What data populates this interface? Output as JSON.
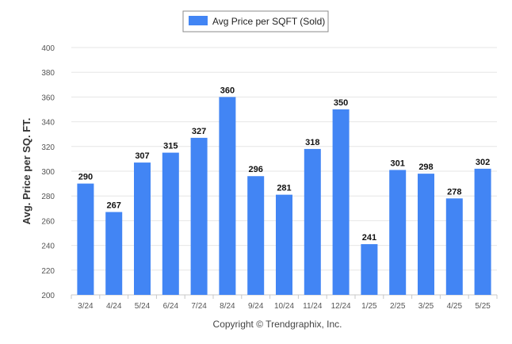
{
  "chart_data": {
    "type": "bar",
    "categories": [
      "3/24",
      "4/24",
      "5/24",
      "6/24",
      "7/24",
      "8/24",
      "9/24",
      "10/24",
      "11/24",
      "12/24",
      "1/25",
      "2/25",
      "3/25",
      "4/25",
      "5/25"
    ],
    "series": [
      {
        "name": "Avg Price per SQFT (Sold)",
        "values": [
          290,
          267,
          307,
          315,
          327,
          360,
          296,
          281,
          318,
          350,
          241,
          301,
          298,
          278,
          302
        ]
      }
    ],
    "title": "",
    "xlabel": "",
    "ylabel": "Avg. Price per SQ. FT.",
    "ylim": [
      200,
      400
    ],
    "yticks": [
      200,
      220,
      240,
      260,
      280,
      300,
      320,
      340,
      360,
      380,
      400
    ],
    "grid": true,
    "legend": "top-center",
    "data_labels": true,
    "colors": {
      "bar": "#4285F4",
      "grid": "#E6E6E6",
      "axis": "#C8C8C8"
    }
  },
  "footer": {
    "copyright": "Copyright © Trendgraphix, Inc."
  }
}
